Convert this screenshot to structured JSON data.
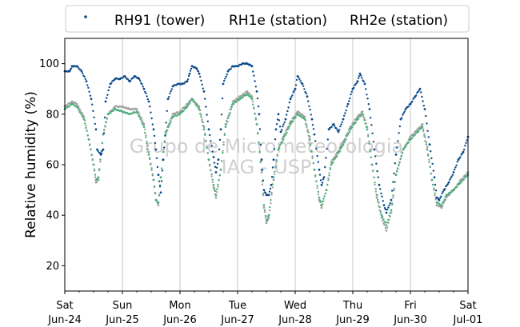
{
  "chart_data": {
    "type": "scatter",
    "ylabel": "Relative humidity (%)",
    "ylim": [
      10,
      110
    ],
    "yticks": [
      20,
      40,
      60,
      80,
      100
    ],
    "xlim": [
      "2023-06-24",
      "2023-07-01"
    ],
    "xticks": [
      {
        "date": "2023-06-24",
        "day": "Sat",
        "label": "Jun-24"
      },
      {
        "date": "2023-06-25",
        "day": "Sun",
        "label": "Jun-25"
      },
      {
        "date": "2023-06-26",
        "day": "Mon",
        "label": "Jun-26"
      },
      {
        "date": "2023-06-27",
        "day": "Tue",
        "label": "Jun-27"
      },
      {
        "date": "2023-06-28",
        "day": "Wed",
        "label": "Jun-28"
      },
      {
        "date": "2023-06-29",
        "day": "Thu",
        "label": "Jun-29"
      },
      {
        "date": "2023-06-30",
        "day": "Fri",
        "label": "Jun-30"
      },
      {
        "date": "2023-07-01",
        "day": "Sat",
        "label": "Jul-01"
      }
    ],
    "grid": "vertical",
    "legend_position": "top",
    "watermark": [
      "Grupo de Micrometeorologia",
      "IAG - USP"
    ],
    "series": [
      {
        "name": "RH91 (tower)",
        "color": "#0b4a8b",
        "points": [
          [
            "2023-06-24 00:00",
            97
          ],
          [
            "2023-06-24 02:00",
            97
          ],
          [
            "2023-06-24 03:00",
            99
          ],
          [
            "2023-06-24 05:00",
            99
          ],
          [
            "2023-06-24 07:00",
            97
          ],
          [
            "2023-06-24 09:00",
            93
          ],
          [
            "2023-06-24 11:00",
            86
          ],
          [
            "2023-06-24 13:00",
            74
          ],
          [
            "2023-06-24 13:30",
            66
          ],
          [
            "2023-06-24 15:00",
            64
          ],
          [
            "2023-06-24 16:00",
            66
          ],
          [
            "2023-06-24 17:00",
            85
          ],
          [
            "2023-06-24 19:00",
            92
          ],
          [
            "2023-06-24 21:00",
            94
          ],
          [
            "2023-06-24 23:00",
            94
          ],
          [
            "2023-06-25 01:00",
            95
          ],
          [
            "2023-06-25 03:00",
            93
          ],
          [
            "2023-06-25 05:00",
            95
          ],
          [
            "2023-06-25 07:00",
            94
          ],
          [
            "2023-06-25 09:00",
            90
          ],
          [
            "2023-06-25 11:00",
            85
          ],
          [
            "2023-06-25 13:00",
            74
          ],
          [
            "2023-06-25 14:00",
            66
          ],
          [
            "2023-06-25 15:00",
            56
          ],
          [
            "2023-06-25 16:00",
            49
          ],
          [
            "2023-06-25 17:00",
            62
          ],
          [
            "2023-06-25 19:00",
            86
          ],
          [
            "2023-06-25 21:00",
            91
          ],
          [
            "2023-06-25 23:00",
            92
          ],
          [
            "2023-06-26 01:00",
            92
          ],
          [
            "2023-06-26 03:00",
            93
          ],
          [
            "2023-06-26 04:00",
            96
          ],
          [
            "2023-06-26 05:00",
            99
          ],
          [
            "2023-06-26 07:00",
            98
          ],
          [
            "2023-06-26 08:00",
            96
          ],
          [
            "2023-06-26 10:00",
            89
          ],
          [
            "2023-06-26 12:00",
            74
          ],
          [
            "2023-06-26 14:00",
            63
          ],
          [
            "2023-06-26 15:00",
            57
          ],
          [
            "2023-06-26 16:00",
            62
          ],
          [
            "2023-06-26 17:00",
            74
          ],
          [
            "2023-06-26 18:00",
            92
          ],
          [
            "2023-06-26 20:00",
            97
          ],
          [
            "2023-06-26 22:00",
            99
          ],
          [
            "2023-06-27 00:00",
            99
          ],
          [
            "2023-06-27 02:00",
            100
          ],
          [
            "2023-06-27 04:00",
            100
          ],
          [
            "2023-06-27 06:00",
            99
          ],
          [
            "2023-06-27 08:00",
            89
          ],
          [
            "2023-06-27 09:00",
            80
          ],
          [
            "2023-06-27 10:00",
            62
          ],
          [
            "2023-06-27 11:00",
            50
          ],
          [
            "2023-06-27 12:00",
            48
          ],
          [
            "2023-06-27 13:00",
            48
          ],
          [
            "2023-06-27 14:00",
            52
          ],
          [
            "2023-06-27 15:00",
            62
          ],
          [
            "2023-06-27 16:00",
            74
          ],
          [
            "2023-06-27 17:00",
            80
          ],
          [
            "2023-06-27 18:00",
            73
          ],
          [
            "2023-06-27 20:00",
            78
          ],
          [
            "2023-06-27 22:00",
            86
          ],
          [
            "2023-06-28 00:00",
            90
          ],
          [
            "2023-06-28 01:00",
            95
          ],
          [
            "2023-06-28 03:00",
            92
          ],
          [
            "2023-06-28 05:00",
            87
          ],
          [
            "2023-06-28 07:00",
            78
          ],
          [
            "2023-06-28 08:00",
            72
          ],
          [
            "2023-06-28 10:00",
            58
          ],
          [
            "2023-06-28 11:00",
            52
          ],
          [
            "2023-06-28 12:00",
            55
          ],
          [
            "2023-06-28 14:00",
            74
          ],
          [
            "2023-06-28 16:00",
            76
          ],
          [
            "2023-06-28 18:00",
            73
          ],
          [
            "2023-06-28 20:00",
            78
          ],
          [
            "2023-06-28 22:00",
            84
          ],
          [
            "2023-06-29 00:00",
            90
          ],
          [
            "2023-06-29 02:00",
            93
          ],
          [
            "2023-06-29 03:00",
            96
          ],
          [
            "2023-06-29 05:00",
            92
          ],
          [
            "2023-06-29 07:00",
            82
          ],
          [
            "2023-06-29 09:00",
            66
          ],
          [
            "2023-06-29 11:00",
            52
          ],
          [
            "2023-06-29 13:00",
            44
          ],
          [
            "2023-06-29 14:00",
            41
          ],
          [
            "2023-06-29 16:00",
            46
          ],
          [
            "2023-06-29 18:00",
            64
          ],
          [
            "2023-06-29 20:00",
            78
          ],
          [
            "2023-06-29 22:00",
            82
          ],
          [
            "2023-06-30 00:00",
            84
          ],
          [
            "2023-06-30 02:00",
            87
          ],
          [
            "2023-06-30 04:00",
            90
          ],
          [
            "2023-06-30 06:00",
            82
          ],
          [
            "2023-06-30 08:00",
            68
          ],
          [
            "2023-06-30 10:00",
            55
          ],
          [
            "2023-06-30 11:00",
            47
          ],
          [
            "2023-06-30 12:00",
            46
          ],
          [
            "2023-06-30 14:00",
            50
          ],
          [
            "2023-06-30 16:00",
            53
          ],
          [
            "2023-06-30 18:00",
            57
          ],
          [
            "2023-06-30 20:00",
            62
          ],
          [
            "2023-06-30 22:00",
            65
          ],
          [
            "2023-06-30 23:59",
            71
          ]
        ]
      },
      {
        "name": "RH1e (station)",
        "color": "#4fae7c",
        "points": [
          [
            "2023-06-24 00:00",
            82
          ],
          [
            "2023-06-24 03:00",
            84
          ],
          [
            "2023-06-24 05:00",
            83
          ],
          [
            "2023-06-24 08:00",
            78
          ],
          [
            "2023-06-24 10:00",
            70
          ],
          [
            "2023-06-24 12:00",
            60
          ],
          [
            "2023-06-24 13:00",
            54
          ],
          [
            "2023-06-24 14:00",
            55
          ],
          [
            "2023-06-24 16:00",
            72
          ],
          [
            "2023-06-24 18:00",
            80
          ],
          [
            "2023-06-24 21:00",
            82
          ],
          [
            "2023-06-25 00:00",
            81
          ],
          [
            "2023-06-25 03:00",
            80
          ],
          [
            "2023-06-25 06:00",
            81
          ],
          [
            "2023-06-25 09:00",
            75
          ],
          [
            "2023-06-25 11:00",
            64
          ],
          [
            "2023-06-25 13:00",
            54
          ],
          [
            "2023-06-25 14:00",
            46
          ],
          [
            "2023-06-25 15:00",
            45
          ],
          [
            "2023-06-25 16:00",
            55
          ],
          [
            "2023-06-25 18:00",
            72
          ],
          [
            "2023-06-25 21:00",
            79
          ],
          [
            "2023-06-26 00:00",
            80
          ],
          [
            "2023-06-26 03:00",
            83
          ],
          [
            "2023-06-26 05:00",
            86
          ],
          [
            "2023-06-26 08:00",
            82
          ],
          [
            "2023-06-26 10:00",
            74
          ],
          [
            "2023-06-26 12:00",
            62
          ],
          [
            "2023-06-26 14:00",
            52
          ],
          [
            "2023-06-26 15:00",
            48
          ],
          [
            "2023-06-26 17:00",
            58
          ],
          [
            "2023-06-26 19:00",
            75
          ],
          [
            "2023-06-26 22:00",
            84
          ],
          [
            "2023-06-27 01:00",
            86
          ],
          [
            "2023-06-27 04:00",
            88
          ],
          [
            "2023-06-27 06:00",
            86
          ],
          [
            "2023-06-27 08:00",
            76
          ],
          [
            "2023-06-27 10:00",
            58
          ],
          [
            "2023-06-27 11:00",
            44
          ],
          [
            "2023-06-27 12:00",
            38
          ],
          [
            "2023-06-27 13:00",
            40
          ],
          [
            "2023-06-27 15:00",
            55
          ],
          [
            "2023-06-27 17:00",
            66
          ],
          [
            "2023-06-27 19:00",
            70
          ],
          [
            "2023-06-27 22:00",
            76
          ],
          [
            "2023-06-28 01:00",
            80
          ],
          [
            "2023-06-28 04:00",
            78
          ],
          [
            "2023-06-28 06:00",
            70
          ],
          [
            "2023-06-28 08:00",
            58
          ],
          [
            "2023-06-28 10:00",
            47
          ],
          [
            "2023-06-28 11:00",
            44
          ],
          [
            "2023-06-28 13:00",
            50
          ],
          [
            "2023-06-28 15:00",
            60
          ],
          [
            "2023-06-28 17:00",
            63
          ],
          [
            "2023-06-28 20:00",
            68
          ],
          [
            "2023-06-28 23:00",
            74
          ],
          [
            "2023-06-29 02:00",
            78
          ],
          [
            "2023-06-29 04:00",
            80
          ],
          [
            "2023-06-29 06:00",
            74
          ],
          [
            "2023-06-29 08:00",
            60
          ],
          [
            "2023-06-29 10:00",
            48
          ],
          [
            "2023-06-29 12:00",
            40
          ],
          [
            "2023-06-29 14:00",
            36
          ],
          [
            "2023-06-29 16:00",
            42
          ],
          [
            "2023-06-29 18:00",
            56
          ],
          [
            "2023-06-29 21:00",
            66
          ],
          [
            "2023-06-30 00:00",
            70
          ],
          [
            "2023-06-30 03:00",
            73
          ],
          [
            "2023-06-30 05:00",
            75
          ],
          [
            "2023-06-30 07:00",
            66
          ],
          [
            "2023-06-30 09:00",
            54
          ],
          [
            "2023-06-30 11:00",
            45
          ],
          [
            "2023-06-30 13:00",
            44
          ],
          [
            "2023-06-30 15:00",
            48
          ],
          [
            "2023-06-30 18:00",
            50
          ],
          [
            "2023-06-30 21:00",
            53
          ],
          [
            "2023-06-30 23:59",
            56
          ]
        ]
      },
      {
        "name": "RH2e (station)",
        "color": "#a0a0a0",
        "points": [
          [
            "2023-06-24 00:00",
            83
          ],
          [
            "2023-06-24 03:00",
            85
          ],
          [
            "2023-06-24 05:00",
            84
          ],
          [
            "2023-06-24 08:00",
            79
          ],
          [
            "2023-06-24 10:00",
            70
          ],
          [
            "2023-06-24 12:00",
            60
          ],
          [
            "2023-06-24 13:00",
            53
          ],
          [
            "2023-06-24 14:00",
            54
          ],
          [
            "2023-06-24 16:00",
            72
          ],
          [
            "2023-06-24 18:00",
            80
          ],
          [
            "2023-06-24 21:00",
            83
          ],
          [
            "2023-06-25 00:00",
            83
          ],
          [
            "2023-06-25 03:00",
            82
          ],
          [
            "2023-06-25 06:00",
            82
          ],
          [
            "2023-06-25 09:00",
            76
          ],
          [
            "2023-06-25 11:00",
            65
          ],
          [
            "2023-06-25 13:00",
            54
          ],
          [
            "2023-06-25 14:00",
            46
          ],
          [
            "2023-06-25 15:00",
            44
          ],
          [
            "2023-06-25 16:00",
            55
          ],
          [
            "2023-06-25 18:00",
            73
          ],
          [
            "2023-06-25 21:00",
            80
          ],
          [
            "2023-06-26 00:00",
            81
          ],
          [
            "2023-06-26 03:00",
            84
          ],
          [
            "2023-06-26 05:00",
            86
          ],
          [
            "2023-06-26 08:00",
            83
          ],
          [
            "2023-06-26 10:00",
            75
          ],
          [
            "2023-06-26 12:00",
            62
          ],
          [
            "2023-06-26 14:00",
            51
          ],
          [
            "2023-06-26 15:00",
            47
          ],
          [
            "2023-06-26 17:00",
            58
          ],
          [
            "2023-06-26 19:00",
            76
          ],
          [
            "2023-06-26 22:00",
            85
          ],
          [
            "2023-06-27 01:00",
            87
          ],
          [
            "2023-06-27 04:00",
            89
          ],
          [
            "2023-06-27 06:00",
            87
          ],
          [
            "2023-06-27 08:00",
            76
          ],
          [
            "2023-06-27 10:00",
            57
          ],
          [
            "2023-06-27 11:00",
            43
          ],
          [
            "2023-06-27 12:00",
            37
          ],
          [
            "2023-06-27 13:00",
            39
          ],
          [
            "2023-06-27 15:00",
            54
          ],
          [
            "2023-06-27 17:00",
            66
          ],
          [
            "2023-06-27 19:00",
            71
          ],
          [
            "2023-06-27 22:00",
            77
          ],
          [
            "2023-06-28 01:00",
            81
          ],
          [
            "2023-06-28 04:00",
            79
          ],
          [
            "2023-06-28 06:00",
            71
          ],
          [
            "2023-06-28 08:00",
            58
          ],
          [
            "2023-06-28 10:00",
            46
          ],
          [
            "2023-06-28 11:00",
            43
          ],
          [
            "2023-06-28 13:00",
            50
          ],
          [
            "2023-06-28 15:00",
            61
          ],
          [
            "2023-06-28 17:00",
            64
          ],
          [
            "2023-06-28 20:00",
            69
          ],
          [
            "2023-06-28 23:00",
            75
          ],
          [
            "2023-06-29 02:00",
            79
          ],
          [
            "2023-06-29 04:00",
            81
          ],
          [
            "2023-06-29 06:00",
            75
          ],
          [
            "2023-06-29 08:00",
            60
          ],
          [
            "2023-06-29 10:00",
            47
          ],
          [
            "2023-06-29 12:00",
            39
          ],
          [
            "2023-06-29 14:00",
            34
          ],
          [
            "2023-06-29 16:00",
            41
          ],
          [
            "2023-06-29 18:00",
            56
          ],
          [
            "2023-06-29 21:00",
            66
          ],
          [
            "2023-06-30 00:00",
            71
          ],
          [
            "2023-06-30 03:00",
            74
          ],
          [
            "2023-06-30 05:00",
            76
          ],
          [
            "2023-06-30 07:00",
            67
          ],
          [
            "2023-06-30 09:00",
            54
          ],
          [
            "2023-06-30 11:00",
            44
          ],
          [
            "2023-06-30 13:00",
            43
          ],
          [
            "2023-06-30 15:00",
            47
          ],
          [
            "2023-06-30 18:00",
            50
          ],
          [
            "2023-06-30 21:00",
            54
          ],
          [
            "2023-06-30 23:59",
            57
          ]
        ]
      }
    ]
  }
}
